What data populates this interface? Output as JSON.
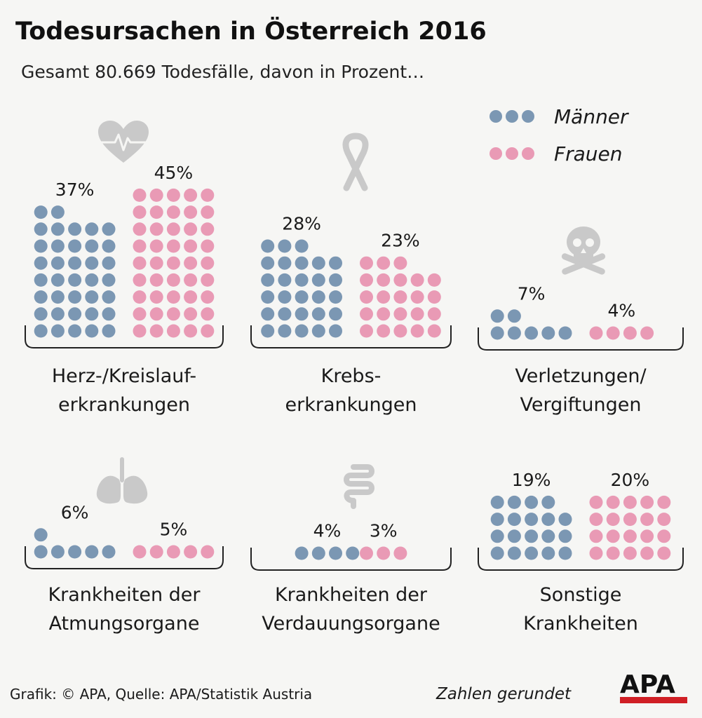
{
  "title": "Todesursachen in Österreich 2016",
  "subtitle": "Gesamt 80.669 Todesfälle, davon in Prozent…",
  "legend": [
    {
      "key": "men",
      "label": "Männer",
      "color": "#7b97b3"
    },
    {
      "key": "women",
      "label": "Frauen",
      "color": "#e99ab5"
    }
  ],
  "footer": {
    "source": "Grafik: © APA, Quelle: APA/Statistik Austria",
    "note": "Zahlen gerundet",
    "logo": "APA"
  },
  "chart_data": {
    "type": "waffle",
    "title": "Todesursachen in Österreich 2016",
    "subtitle": "Gesamt 80.669 Todesfälle, davon in Prozent…",
    "unit": "%",
    "series": [
      {
        "name": "Männer",
        "color": "#7b97b3"
      },
      {
        "name": "Frauen",
        "color": "#e99ab5"
      }
    ],
    "categories": [
      {
        "id": "herz",
        "icon": "heart-icon",
        "label_lines": [
          "Herz-/Kreislauf-",
          "erkrankungen"
        ],
        "men": 37,
        "women": 45,
        "men_label": "37%",
        "women_label": "45%"
      },
      {
        "id": "krebs",
        "icon": "ribbon-icon",
        "label_lines": [
          "Krebs-",
          "erkrankungen"
        ],
        "men": 28,
        "women": 23,
        "men_label": "28%",
        "women_label": "23%"
      },
      {
        "id": "verletzungen",
        "icon": "skull-icon",
        "label_lines": [
          "Verletzungen/",
          "Vergiftungen"
        ],
        "men": 7,
        "women": 4,
        "men_label": "7%",
        "women_label": "4%"
      },
      {
        "id": "atmung",
        "icon": "lungs-icon",
        "label_lines": [
          "Krankheiten der",
          "Atmungsorgane"
        ],
        "men": 6,
        "women": 5,
        "men_label": "6%",
        "women_label": "5%"
      },
      {
        "id": "verdauung",
        "icon": "intestine-icon",
        "label_lines": [
          "Krankheiten der",
          "Verdauungsorgane"
        ],
        "men": 4,
        "women": 3,
        "men_label": "4%",
        "women_label": "3%"
      },
      {
        "id": "sonstige",
        "icon": "none",
        "label_lines": [
          "Sonstige",
          "Krankheiten"
        ],
        "men": 19,
        "women": 20,
        "men_label": "19%",
        "women_label": "20%"
      }
    ]
  }
}
